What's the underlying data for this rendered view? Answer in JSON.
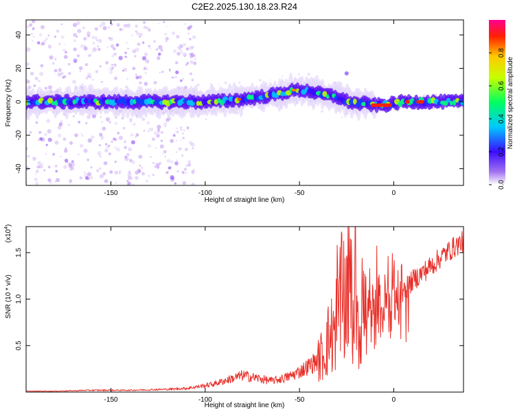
{
  "title": "C2E2.2025.130.18.23.R24",
  "colors": {
    "snr_line": "#e8302a",
    "spectrum_band": "rainbow",
    "scatter_points": "#b98cf0"
  },
  "chart_data": [
    {
      "type": "heatmap",
      "title": "C2E2.2025.130.18.23.R24",
      "xlabel": "Height of straight line (km)",
      "ylabel": "Frequency (Hz)",
      "xlim": [
        -195,
        37
      ],
      "ylim": [
        -50,
        49
      ],
      "x_ticks": [
        "-150",
        "-100",
        "-50",
        "0"
      ],
      "x_tick_values": [
        -150,
        -100,
        -50,
        0
      ],
      "y_ticks": [
        "-40",
        "-20",
        "0",
        "20",
        "40"
      ],
      "y_tick_values": [
        -40,
        -20,
        0,
        20,
        40
      ],
      "colorbar": {
        "label": "Normalized spectral amplitude",
        "range": [
          0,
          1
        ],
        "ticks": [
          "0.0",
          "0.2",
          "0.4",
          "0.6",
          "0.8"
        ],
        "tick_values": [
          0,
          0.2,
          0.4,
          0.6,
          0.8
        ]
      },
      "ridge": {
        "x": [
          -195,
          -160,
          -130,
          -100,
          -90,
          -80,
          -70,
          -60,
          -55,
          -50,
          -45,
          -40,
          -35,
          -30,
          -25,
          -20,
          -15,
          -10,
          -5,
          0,
          5,
          10,
          15,
          20,
          25,
          30,
          37
        ],
        "y": [
          0,
          0,
          0,
          0,
          0.5,
          1.5,
          3,
          5,
          6.5,
          7,
          6.5,
          5,
          4,
          3,
          0.5,
          -1,
          -1,
          -2,
          -2,
          -1,
          0,
          0,
          0,
          0,
          0,
          0,
          0
        ]
      }
    },
    {
      "type": "line",
      "xlabel": "Height of straight line (km)",
      "ylabel": "SNR (10 * v/v)",
      "y_multiplier": "(x10",
      "y_multiplier_exp": "4",
      "xlim": [
        -195,
        37
      ],
      "ylim": [
        0,
        1.78
      ],
      "x_ticks": [
        "-150",
        "-100",
        "-50",
        "0"
      ],
      "x_tick_values": [
        -150,
        -100,
        -50,
        0
      ],
      "y_ticks": [
        "0.5",
        "1.0",
        "1.5"
      ],
      "y_tick_values": [
        0.5,
        1.0,
        1.5
      ],
      "series": [
        {
          "x": [
            -195,
            -180,
            -160,
            -140,
            -120,
            -110,
            -100,
            -95,
            -90,
            -85,
            -80,
            -75,
            -70,
            -65,
            -60,
            -55,
            -50,
            -45,
            -40,
            -37,
            -35,
            -32,
            -30,
            -28,
            -26,
            -24,
            -22,
            -20,
            -18,
            -16,
            -14,
            -12,
            -10,
            -8,
            -6,
            -4,
            -2,
            0,
            2,
            4,
            6,
            8,
            10,
            15,
            20,
            25,
            30,
            35,
            37
          ],
          "y": [
            0.01,
            0.01,
            0.02,
            0.02,
            0.03,
            0.04,
            0.07,
            0.09,
            0.12,
            0.15,
            0.18,
            0.16,
            0.14,
            0.12,
            0.14,
            0.17,
            0.22,
            0.28,
            0.35,
            0.42,
            0.55,
            0.65,
            0.8,
            1.0,
            0.9,
            1.3,
            0.8,
            1.1,
            0.7,
            0.9,
            0.75,
            0.85,
            0.8,
            0.95,
            0.85,
            1.0,
            0.9,
            1.1,
            0.95,
            1.05,
            1.1,
            1.15,
            1.2,
            1.28,
            1.36,
            1.45,
            1.53,
            1.6,
            1.62
          ]
        }
      ]
    }
  ]
}
